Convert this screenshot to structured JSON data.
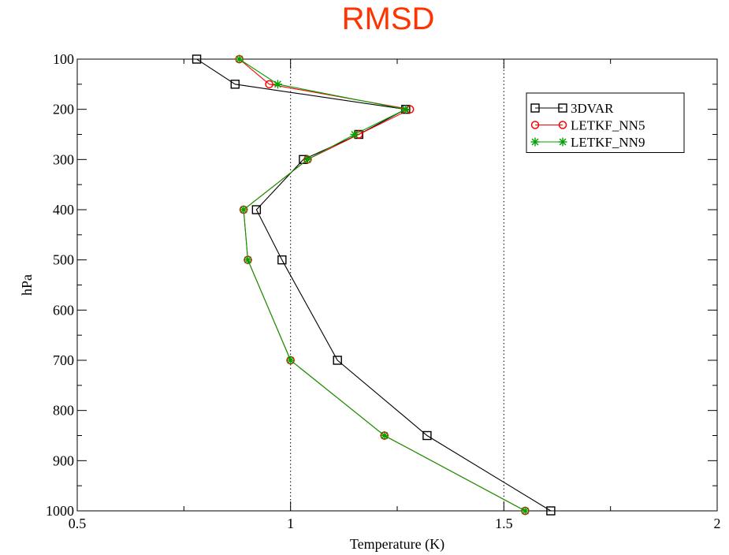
{
  "chart_data": {
    "type": "line",
    "title": "RMSD",
    "xlabel": "Temperature (K)",
    "ylabel": "hPa",
    "xlim": [
      0.5,
      2
    ],
    "ylim": [
      100,
      1000
    ],
    "y_inverted": true,
    "xticks": [
      0.5,
      1,
      1.5,
      2
    ],
    "xtick_labels": [
      "0.5",
      "1",
      "1.5",
      "2"
    ],
    "yticks": [
      100,
      200,
      300,
      400,
      500,
      600,
      700,
      800,
      900,
      1000
    ],
    "ytick_labels": [
      "100",
      "200",
      "300",
      "400",
      "500",
      "600",
      "700",
      "800",
      "900",
      "1000"
    ],
    "reference_lines_x": [
      1,
      1.5
    ],
    "legend_position": "top-right",
    "series": [
      {
        "name": "3DVAR",
        "color": "#000000",
        "marker": "square",
        "points": [
          {
            "x": 0.78,
            "y": 100
          },
          {
            "x": 0.87,
            "y": 150
          },
          {
            "x": 1.27,
            "y": 200
          },
          {
            "x": 1.16,
            "y": 250
          },
          {
            "x": 1.03,
            "y": 300
          },
          {
            "x": 0.92,
            "y": 400
          },
          {
            "x": 0.98,
            "y": 500
          },
          {
            "x": 1.11,
            "y": 700
          },
          {
            "x": 1.32,
            "y": 850
          },
          {
            "x": 1.61,
            "y": 1000
          }
        ]
      },
      {
        "name": "LETKF_NN5",
        "color": "#ff0000",
        "marker": "circle",
        "points": [
          {
            "x": 0.88,
            "y": 100
          },
          {
            "x": 0.95,
            "y": 150
          },
          {
            "x": 1.28,
            "y": 200
          },
          {
            "x": 1.16,
            "y": 250
          },
          {
            "x": 1.04,
            "y": 300
          },
          {
            "x": 0.89,
            "y": 400
          },
          {
            "x": 0.9,
            "y": 500
          },
          {
            "x": 1.0,
            "y": 700
          },
          {
            "x": 1.22,
            "y": 850
          },
          {
            "x": 1.55,
            "y": 1000
          }
        ]
      },
      {
        "name": "LETKF_NN9",
        "color": "#00a000",
        "marker": "asterisk",
        "points": [
          {
            "x": 0.88,
            "y": 100
          },
          {
            "x": 0.97,
            "y": 150
          },
          {
            "x": 1.27,
            "y": 200
          },
          {
            "x": 1.15,
            "y": 250
          },
          {
            "x": 1.04,
            "y": 300
          },
          {
            "x": 0.89,
            "y": 400
          },
          {
            "x": 0.9,
            "y": 500
          },
          {
            "x": 1.0,
            "y": 700
          },
          {
            "x": 1.22,
            "y": 850
          },
          {
            "x": 1.55,
            "y": 1000
          }
        ]
      }
    ]
  }
}
